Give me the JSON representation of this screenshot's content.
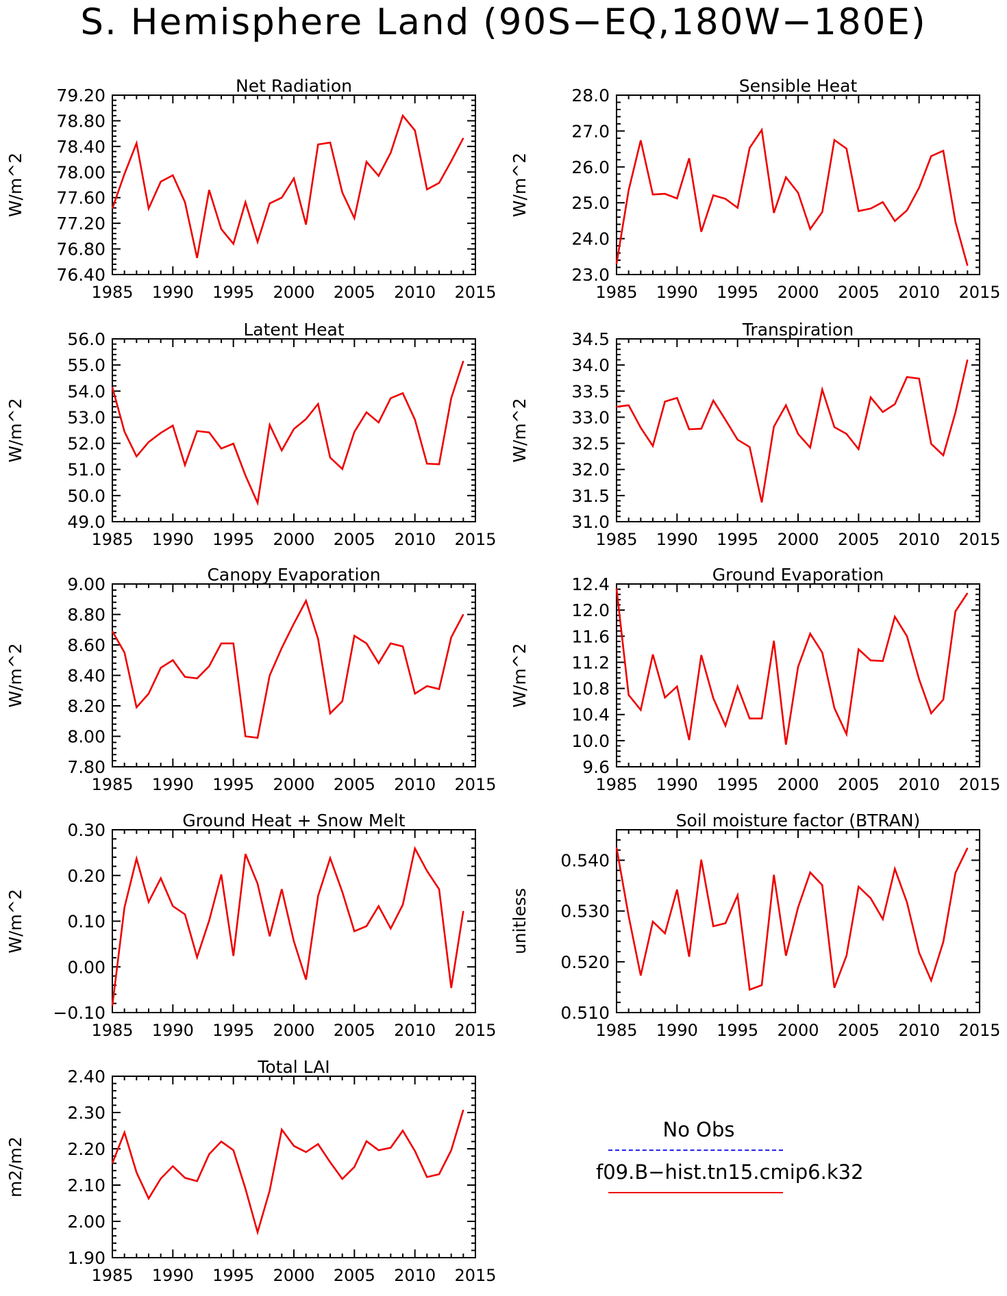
{
  "page": {
    "title": "S. Hemisphere Land (90S−EQ,180W−180E)"
  },
  "legend": {
    "entries": [
      {
        "label": "No Obs",
        "color": "#2222ee",
        "style": "dashed"
      },
      {
        "label": "f09.B−hist.tn15.cmip6.k32",
        "color": "#ee0000",
        "style": "solid"
      }
    ]
  },
  "chart_data": [
    {
      "type": "line",
      "title": "Net Radiation",
      "ylabel": "W/m^2",
      "xlim": [
        1985,
        2015
      ],
      "ylim": [
        76.4,
        79.2
      ],
      "xticks": [
        "1985",
        "1990",
        "1995",
        "2000",
        "2005",
        "2010",
        "2015"
      ],
      "yticks": [
        "76.40",
        "76.80",
        "77.20",
        "77.60",
        "78.00",
        "78.40",
        "78.80",
        "79.20"
      ],
      "x": [
        1985,
        1986,
        1987,
        1988,
        1989,
        1990,
        1991,
        1992,
        1993,
        1994,
        1995,
        1996,
        1997,
        1998,
        1999,
        2000,
        2001,
        2002,
        2003,
        2004,
        2005,
        2006,
        2007,
        2008,
        2009,
        2010,
        2011,
        2012,
        2013,
        2014
      ],
      "series": [
        {
          "color": "#ee0000",
          "values": [
            77.43,
            77.97,
            78.45,
            77.43,
            77.85,
            77.95,
            77.53,
            76.66,
            77.72,
            77.11,
            76.88,
            77.53,
            76.91,
            77.51,
            77.6,
            77.9,
            77.18,
            78.43,
            78.46,
            77.68,
            77.28,
            78.16,
            77.94,
            78.3,
            78.88,
            78.65,
            77.73,
            77.83,
            78.17,
            78.53
          ]
        }
      ]
    },
    {
      "type": "line",
      "title": "Sensible Heat",
      "ylabel": "W/m^2",
      "xlim": [
        1985,
        2015
      ],
      "ylim": [
        23.0,
        28.0
      ],
      "xticks": [
        "1985",
        "1990",
        "1995",
        "2000",
        "2005",
        "2010",
        "2015"
      ],
      "yticks": [
        "23.0",
        "24.0",
        "25.0",
        "26.0",
        "27.0",
        "28.0"
      ],
      "x": [
        1985,
        1986,
        1987,
        1988,
        1989,
        1990,
        1991,
        1992,
        1993,
        1994,
        1995,
        1996,
        1997,
        1998,
        1999,
        2000,
        2001,
        2002,
        2003,
        2004,
        2005,
        2006,
        2007,
        2008,
        2009,
        2010,
        2011,
        2012,
        2013,
        2014
      ],
      "series": [
        {
          "color": "#ee0000",
          "values": [
            23.3,
            25.35,
            26.74,
            25.23,
            25.25,
            25.12,
            26.24,
            24.19,
            25.21,
            25.11,
            24.86,
            26.53,
            27.03,
            24.72,
            25.71,
            25.28,
            24.27,
            24.74,
            26.75,
            26.51,
            24.77,
            24.84,
            25.02,
            24.49,
            24.79,
            25.42,
            26.3,
            26.45,
            24.47,
            23.25
          ]
        }
      ]
    },
    {
      "type": "line",
      "title": "Latent Heat",
      "ylabel": "W/m^2",
      "xlim": [
        1985,
        2015
      ],
      "ylim": [
        49.0,
        56.0
      ],
      "xticks": [
        "1985",
        "1990",
        "1995",
        "2000",
        "2005",
        "2010",
        "2015"
      ],
      "yticks": [
        "49.0",
        "50.0",
        "51.0",
        "52.0",
        "53.0",
        "54.0",
        "55.0",
        "56.0"
      ],
      "x": [
        1985,
        1986,
        1987,
        1988,
        1989,
        1990,
        1991,
        1992,
        1993,
        1994,
        1995,
        1996,
        1997,
        1998,
        1999,
        2000,
        2001,
        2002,
        2003,
        2004,
        2005,
        2006,
        2007,
        2008,
        2009,
        2010,
        2011,
        2012,
        2013,
        2014
      ],
      "series": [
        {
          "color": "#ee0000",
          "values": [
            54.15,
            52.45,
            51.5,
            52.05,
            52.4,
            52.68,
            51.17,
            52.47,
            52.42,
            51.8,
            51.99,
            50.77,
            49.72,
            52.71,
            51.73,
            52.55,
            52.93,
            53.51,
            51.45,
            51.02,
            52.44,
            53.19,
            52.8,
            53.73,
            53.92,
            52.91,
            51.22,
            51.2,
            53.73,
            55.15
          ]
        }
      ]
    },
    {
      "type": "line",
      "title": "Transpiration",
      "ylabel": "W/m^2",
      "xlim": [
        1985,
        2015
      ],
      "ylim": [
        31.0,
        34.5
      ],
      "xticks": [
        "1985",
        "1990",
        "1995",
        "2000",
        "2005",
        "2010",
        "2015"
      ],
      "yticks": [
        "31.0",
        "31.5",
        "32.0",
        "32.5",
        "33.0",
        "33.5",
        "34.0",
        "34.5"
      ],
      "x": [
        1985,
        1986,
        1987,
        1988,
        1989,
        1990,
        1991,
        1992,
        1993,
        1994,
        1995,
        1996,
        1997,
        1998,
        1999,
        2000,
        2001,
        2002,
        2003,
        2004,
        2005,
        2006,
        2007,
        2008,
        2009,
        2010,
        2011,
        2012,
        2013,
        2014
      ],
      "series": [
        {
          "color": "#ee0000",
          "values": [
            33.2,
            33.23,
            32.8,
            32.45,
            33.3,
            33.37,
            32.77,
            32.78,
            33.32,
            32.95,
            32.57,
            32.43,
            31.37,
            32.82,
            33.23,
            32.68,
            32.42,
            33.53,
            32.81,
            32.68,
            32.39,
            33.38,
            33.1,
            33.25,
            33.77,
            33.74,
            32.49,
            32.27,
            33.09,
            34.1
          ]
        }
      ]
    },
    {
      "type": "line",
      "title": "Canopy Evaporation",
      "ylabel": "W/m^2",
      "xlim": [
        1985,
        2015
      ],
      "ylim": [
        7.8,
        9.0
      ],
      "xticks": [
        "1985",
        "1990",
        "1995",
        "2000",
        "2005",
        "2010",
        "2015"
      ],
      "yticks": [
        "7.80",
        "8.00",
        "8.20",
        "8.40",
        "8.60",
        "8.80",
        "9.00"
      ],
      "x": [
        1985,
        1986,
        1987,
        1988,
        1989,
        1990,
        1991,
        1992,
        1993,
        1994,
        1995,
        1996,
        1997,
        1998,
        1999,
        2000,
        2001,
        2002,
        2003,
        2004,
        2005,
        2006,
        2007,
        2008,
        2009,
        2010,
        2011,
        2012,
        2013,
        2014
      ],
      "series": [
        {
          "color": "#ee0000",
          "values": [
            8.69,
            8.55,
            8.19,
            8.28,
            8.45,
            8.5,
            8.39,
            8.38,
            8.46,
            8.61,
            8.61,
            8.0,
            7.99,
            8.4,
            8.58,
            8.74,
            8.89,
            8.64,
            8.15,
            8.23,
            8.66,
            8.61,
            8.48,
            8.61,
            8.59,
            8.28,
            8.33,
            8.31,
            8.65,
            8.8
          ]
        }
      ]
    },
    {
      "type": "line",
      "title": "Ground Evaporation",
      "ylabel": "W/m^2",
      "xlim": [
        1985,
        2015
      ],
      "ylim": [
        9.6,
        12.4
      ],
      "xticks": [
        "1985",
        "1990",
        "1995",
        "2000",
        "2005",
        "2010",
        "2015"
      ],
      "yticks": [
        "9.6",
        "10.0",
        "10.4",
        "10.8",
        "11.2",
        "11.6",
        "12.0",
        "12.4"
      ],
      "x": [
        1985,
        1986,
        1987,
        1988,
        1989,
        1990,
        1991,
        1992,
        1993,
        1994,
        1995,
        1996,
        1997,
        1998,
        1999,
        2000,
        2001,
        2002,
        2003,
        2004,
        2005,
        2006,
        2007,
        2008,
        2009,
        2010,
        2011,
        2012,
        2013,
        2014
      ],
      "series": [
        {
          "color": "#ee0000",
          "values": [
            12.33,
            10.7,
            10.47,
            11.32,
            10.66,
            10.83,
            10.01,
            11.31,
            10.65,
            10.23,
            10.83,
            10.34,
            10.34,
            11.53,
            9.94,
            11.13,
            11.64,
            11.35,
            10.5,
            10.1,
            11.4,
            11.23,
            11.22,
            11.9,
            11.6,
            10.94,
            10.42,
            10.63,
            11.98,
            12.26
          ]
        }
      ]
    },
    {
      "type": "line",
      "title": "Ground Heat + Snow Melt",
      "ylabel": "W/m^2",
      "xlim": [
        1985,
        2015
      ],
      "ylim": [
        -0.1,
        0.3
      ],
      "xticks": [
        "1985",
        "1990",
        "1995",
        "2000",
        "2005",
        "2010",
        "2015"
      ],
      "yticks": [
        "−0.10",
        "0.00",
        "0.10",
        "0.20",
        "0.30"
      ],
      "x": [
        1985,
        1986,
        1987,
        1988,
        1989,
        1990,
        1991,
        1992,
        1993,
        1994,
        1995,
        1996,
        1997,
        1998,
        1999,
        2000,
        2001,
        2002,
        2003,
        2004,
        2005,
        2006,
        2007,
        2008,
        2009,
        2010,
        2011,
        2012,
        2013,
        2014
      ],
      "series": [
        {
          "color": "#ee0000",
          "values": [
            -0.085,
            0.13,
            0.237,
            0.142,
            0.194,
            0.133,
            0.115,
            0.021,
            0.101,
            0.202,
            0.024,
            0.247,
            0.182,
            0.067,
            0.17,
            0.056,
            -0.028,
            0.155,
            0.238,
            0.164,
            0.078,
            0.089,
            0.133,
            0.084,
            0.136,
            0.259,
            0.21,
            0.17,
            -0.046,
            0.122
          ]
        }
      ]
    },
    {
      "type": "line",
      "title": "Soil moisture factor (BTRAN)",
      "ylabel": "unitless",
      "xlim": [
        1985,
        2015
      ],
      "ylim": [
        0.51,
        0.546
      ],
      "xticks": [
        "1985",
        "1990",
        "1995",
        "2000",
        "2005",
        "2010",
        "2015"
      ],
      "yticks": [
        "0.510",
        "0.520",
        "0.530",
        "0.540"
      ],
      "x": [
        1985,
        1986,
        1987,
        1988,
        1989,
        1990,
        1991,
        1992,
        1993,
        1994,
        1995,
        1996,
        1997,
        1998,
        1999,
        2000,
        2001,
        2002,
        2003,
        2004,
        2005,
        2006,
        2007,
        2008,
        2009,
        2010,
        2011,
        2012,
        2013,
        2014
      ],
      "series": [
        {
          "color": "#ee0000",
          "values": [
            0.5425,
            0.529,
            0.5173,
            0.5279,
            0.5256,
            0.5342,
            0.521,
            0.5401,
            0.527,
            0.5276,
            0.5331,
            0.5145,
            0.5154,
            0.5371,
            0.5212,
            0.5307,
            0.5376,
            0.5351,
            0.5149,
            0.5212,
            0.5348,
            0.5325,
            0.5284,
            0.5383,
            0.5317,
            0.5218,
            0.5163,
            0.5239,
            0.5375,
            0.5424
          ]
        }
      ]
    },
    {
      "type": "line",
      "title": "Total LAI",
      "ylabel": "m2/m2",
      "xlim": [
        1985,
        2015
      ],
      "ylim": [
        1.9,
        2.4
      ],
      "xticks": [
        "1985",
        "1990",
        "1995",
        "2000",
        "2005",
        "2010",
        "2015"
      ],
      "yticks": [
        "1.90",
        "2.00",
        "2.10",
        "2.20",
        "2.30",
        "2.40"
      ],
      "x": [
        1985,
        1986,
        1987,
        1988,
        1989,
        1990,
        1991,
        1992,
        1993,
        1994,
        1995,
        1996,
        1997,
        1998,
        1999,
        2000,
        2001,
        2002,
        2003,
        2004,
        2005,
        2006,
        2007,
        2008,
        2009,
        2010,
        2011,
        2012,
        2013,
        2014
      ],
      "series": [
        {
          "color": "#ee0000",
          "values": [
            2.16,
            2.245,
            2.135,
            2.063,
            2.118,
            2.152,
            2.12,
            2.111,
            2.185,
            2.22,
            2.196,
            2.09,
            1.97,
            2.085,
            2.253,
            2.208,
            2.191,
            2.213,
            2.163,
            2.117,
            2.15,
            2.221,
            2.196,
            2.203,
            2.25,
            2.194,
            2.122,
            2.13,
            2.196,
            2.307
          ]
        }
      ]
    }
  ]
}
